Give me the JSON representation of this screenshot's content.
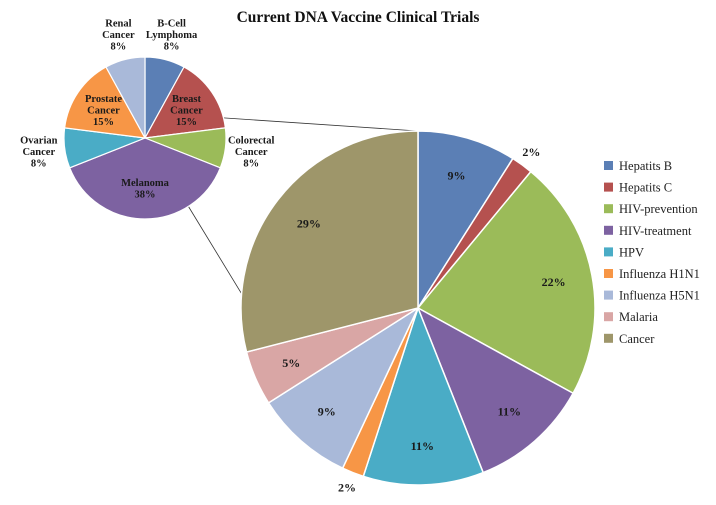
{
  "chart_data": [
    {
      "type": "pie",
      "title": "Current DNA Vaccine Clinical Trials",
      "categories": [
        "Hepatits B",
        "Hepatits C",
        "HIV-prevention",
        "HIV-treatment",
        "HPV",
        "Influenza H1N1",
        "Influenza H5N1",
        "Malaria",
        "Cancer"
      ],
      "values": [
        9,
        2,
        22,
        11,
        11,
        2,
        9,
        5,
        29
      ],
      "labels": [
        "9%",
        "2%",
        "22%",
        "11%",
        "11%",
        "2%",
        "9%",
        "5%",
        "29%"
      ],
      "colors": [
        "#5b7fb5",
        "#b5514f",
        "#9bbb59",
        "#7d62a1",
        "#4aacc6",
        "#f79646",
        "#a9b9d9",
        "#d9a6a5",
        "#9e966a"
      ],
      "legend": "right"
    },
    {
      "type": "pie",
      "categories": [
        "B-Cell Lymphoma",
        "Breast Cancer",
        "Colorectal Cancer",
        "Melanoma",
        "Ovarian Cancer",
        "Prostate Cancer",
        "Renal Cancer"
      ],
      "label_lines": [
        [
          "B-Cell",
          "Lymphoma"
        ],
        [
          "Breast",
          "Cancer"
        ],
        [
          "Colorectal",
          "Cancer"
        ],
        [
          "Melanoma"
        ],
        [
          "Ovarian",
          "Cancer"
        ],
        [
          "Prostate",
          "Cancer"
        ],
        [
          "Renal",
          "Cancer"
        ]
      ],
      "values": [
        8,
        15,
        8,
        38,
        8,
        15,
        8
      ],
      "labels": [
        "8%",
        "15%",
        "8%",
        "38%",
        "8%",
        "15%",
        "8%"
      ],
      "colors": [
        "#5b7fb5",
        "#b5514f",
        "#9bbb59",
        "#7d62a1",
        "#4aacc6",
        "#f79646",
        "#a9b9d9"
      ],
      "breakdown_of": "Cancer"
    }
  ]
}
